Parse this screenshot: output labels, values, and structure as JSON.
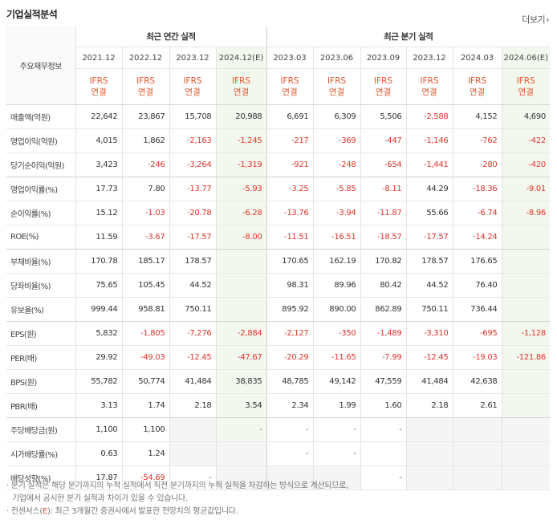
{
  "header": {
    "title": "기업실적분석",
    "more_label": "더보기",
    "more_arrow": "›"
  },
  "table": {
    "label_header": "주요재무정보",
    "group_annual": "최근 연간 실적",
    "group_quarter": "최근 분기 실적",
    "periods": [
      "2021.12",
      "2022.12",
      "2023.12",
      "2024.12(E)",
      "2023.03",
      "2023.06",
      "2023.09",
      "2023.12",
      "2024.03",
      "2024.06(E)"
    ],
    "standard_line1": "IFRS",
    "standard_line2": "연결",
    "rows": [
      {
        "label": "매출액(억원)",
        "values": [
          "22,642",
          "23,867",
          "15,708",
          "20,988",
          "6,691",
          "6,309",
          "5,506",
          "-2,588",
          "4,152",
          "4,690"
        ]
      },
      {
        "label": "영업이익(억원)",
        "values": [
          "4,015",
          "1,862",
          "-2,163",
          "-1,245",
          "-217",
          "-369",
          "-447",
          "-1,146",
          "-762",
          "-422"
        ]
      },
      {
        "label": "당기순이익(억원)",
        "values": [
          "3,423",
          "-246",
          "-3,264",
          "-1,319",
          "-921",
          "-248",
          "-654",
          "-1,441",
          "-280",
          "-420"
        ]
      },
      {
        "label": "영업이익률(%)",
        "values": [
          "17.73",
          "7.80",
          "-13.77",
          "-5.93",
          "-3.25",
          "-5.85",
          "-8.11",
          "44.29",
          "-18.36",
          "-9.01"
        ]
      },
      {
        "label": "순이익률(%)",
        "values": [
          "15.12",
          "-1.03",
          "-20.78",
          "-6.28",
          "-13.76",
          "-3.94",
          "-11.87",
          "55.66",
          "-6.74",
          "-8.96"
        ]
      },
      {
        "label": "ROE(%)",
        "values": [
          "11.59",
          "-3.67",
          "-17.57",
          "-8.00",
          "-11.51",
          "-16.51",
          "-18.57",
          "-17.57",
          "-14.24",
          ""
        ]
      },
      {
        "label": "부채비율(%)",
        "values": [
          "170.78",
          "185.17",
          "178.57",
          "",
          "170.65",
          "162.19",
          "170.82",
          "178.57",
          "176.65",
          ""
        ]
      },
      {
        "label": "당좌비율(%)",
        "values": [
          "75.65",
          "105.45",
          "44.52",
          "",
          "98.31",
          "89.96",
          "80.42",
          "44.52",
          "76.40",
          ""
        ]
      },
      {
        "label": "유보율(%)",
        "values": [
          "999.44",
          "958.81",
          "750.11",
          "",
          "895.92",
          "890.00",
          "862.89",
          "750.11",
          "736.44",
          ""
        ]
      },
      {
        "label": "EPS(원)",
        "values": [
          "5,832",
          "-1,805",
          "-7,276",
          "-2,884",
          "-2,127",
          "-350",
          "-1,489",
          "-3,310",
          "-695",
          "-1,128"
        ]
      },
      {
        "label": "PER(배)",
        "values": [
          "29.92",
          "-49.03",
          "-12.45",
          "-47.67",
          "-20.29",
          "-11.65",
          "-7.99",
          "-12.45",
          "-19.03",
          "-121.86"
        ]
      },
      {
        "label": "BPS(원)",
        "values": [
          "55,782",
          "50,774",
          "41,484",
          "38,835",
          "48,785",
          "49,142",
          "47,559",
          "41,484",
          "42,638",
          ""
        ]
      },
      {
        "label": "PBR(배)",
        "values": [
          "3.13",
          "1.74",
          "2.18",
          "3.54",
          "2.34",
          "1.99",
          "1.60",
          "2.18",
          "2.61",
          ""
        ]
      },
      {
        "label": "주당배당금(원)",
        "values": [
          "1,100",
          "1,100",
          "",
          "-",
          "-",
          "-",
          "-",
          "",
          "",
          ""
        ]
      },
      {
        "label": "시가배당률(%)",
        "values": [
          "0.63",
          "1.24",
          "",
          "",
          "-",
          "-",
          "",
          "",
          "",
          ""
        ]
      },
      {
        "label": "배당성향(%)",
        "values": [
          "17.87",
          "-54.69",
          "-",
          "",
          "",
          "",
          "-",
          "",
          "",
          ""
        ]
      }
    ]
  },
  "notes": {
    "line1": "· 분기 실적은 해당 분기까지의 누적 실적에서 직전 분기까지의 누적 실적을 차감하는 방식으로 계산되므로,",
    "line2": "기업에서 공시한 분기 실적과 차이가 있을 수 있습니다.",
    "line3_prefix": "· 컨센서스(",
    "line3_e": "E",
    "line3_suffix": "): 최근 3개월간 증권사에서 발표한 전망치의 평균값입니다."
  }
}
